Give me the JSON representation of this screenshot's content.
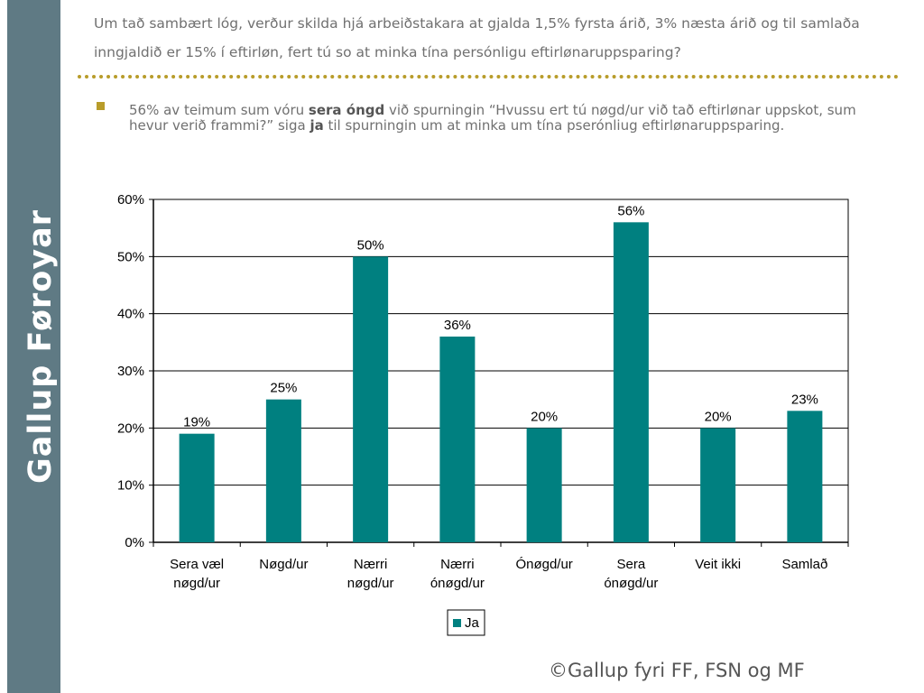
{
  "sidebar": {
    "brand": "Gallup Føroyar"
  },
  "question": "Um tað sambært lóg, verður skilda hjá arbeiðstakara at gjalda 1,5% fyrsta árið, 3% næsta árið og til samlaða inngjaldið er 15% í eftirløn, fert tú so at minka tína persónligu eftirlønaruppsparing?",
  "bullet": {
    "p1": "56% av teimum sum vóru ",
    "b1": "sera óngd",
    "p2": " við spurningin “Hvussu ert tú nøgd/ur við tað eftirlønar uppskot, sum hevur verið frammi?” siga ",
    "b2": "ja",
    "p3": " til spurningin um at minka um tína pserónliug eftirlønaruppsparing."
  },
  "chart_data": {
    "type": "bar",
    "categories": [
      [
        "Sera væl",
        "nøgd/ur"
      ],
      [
        "Nøgd/ur"
      ],
      [
        "Nærri",
        "nøgd/ur"
      ],
      [
        "Nærri",
        "ónøgd/ur"
      ],
      [
        "Ónøgd/ur"
      ],
      [
        "Sera",
        "ónøgd/ur"
      ],
      [
        "Veit ikki"
      ],
      [
        "Samlað"
      ]
    ],
    "series": [
      {
        "name": "Ja",
        "values": [
          19,
          25,
          50,
          36,
          20,
          56,
          20,
          23
        ],
        "color": "#008080"
      }
    ],
    "data_labels": [
      "19%",
      "25%",
      "50%",
      "36%",
      "20%",
      "56%",
      "20%",
      "23%"
    ],
    "ylim": [
      0,
      60
    ],
    "yticks": [
      "0%",
      "10%",
      "20%",
      "30%",
      "40%",
      "50%",
      "60%"
    ],
    "grid": true,
    "legend_position": "bottom"
  },
  "footer": "©Gallup fyri FF, FSN og MF"
}
